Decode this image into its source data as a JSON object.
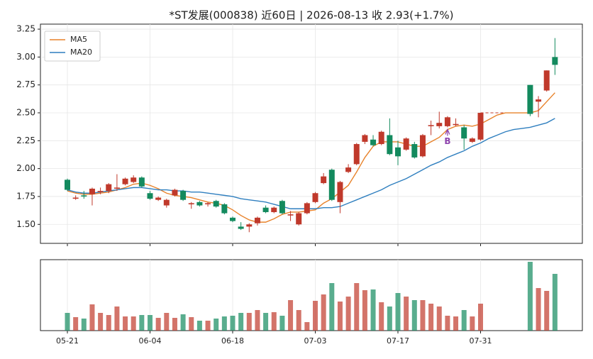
{
  "chart_data": {
    "type": "candlestick",
    "title": "*ST发展(000838) 近60日  |  2026-08-13 收 2.93(+1.7%)",
    "categories": [
      "05-21",
      null,
      null,
      null,
      null,
      null,
      null,
      null,
      null,
      null,
      "06-04",
      null,
      null,
      null,
      null,
      null,
      null,
      null,
      null,
      null,
      "06-18",
      null,
      null,
      null,
      null,
      null,
      null,
      null,
      null,
      null,
      "07-03",
      null,
      null,
      null,
      null,
      null,
      null,
      null,
      null,
      null,
      "07-17",
      null,
      null,
      null,
      null,
      null,
      null,
      null,
      null,
      null,
      "07-31",
      null,
      null,
      null,
      null,
      null,
      null,
      null,
      null,
      null
    ],
    "open": [
      1.9,
      1.73,
      1.76,
      1.77,
      1.79,
      1.8,
      1.82,
      1.86,
      1.88,
      1.92,
      1.78,
      1.72,
      1.67,
      1.76,
      1.8,
      1.68,
      1.7,
      1.68,
      1.71,
      1.68,
      1.56,
      1.48,
      1.48,
      1.51,
      1.65,
      1.61,
      1.71,
      1.58,
      1.5,
      1.6,
      1.7,
      1.87,
      1.99,
      1.7,
      1.97,
      2.04,
      2.24,
      2.26,
      2.22,
      2.3,
      2.19,
      2.17,
      2.22,
      2.11,
      2.38,
      2.38,
      2.38,
      2.39,
      2.37,
      2.24,
      2.26,
      null,
      null,
      null,
      null,
      null,
      2.75,
      2.6,
      2.7,
      3.0
    ],
    "high": [
      1.91,
      1.76,
      1.8,
      1.83,
      1.83,
      1.87,
      1.95,
      1.92,
      1.94,
      1.93,
      1.8,
      1.75,
      1.73,
      1.82,
      1.81,
      1.7,
      1.71,
      1.7,
      1.72,
      1.69,
      1.57,
      1.52,
      1.51,
      1.57,
      1.67,
      1.66,
      1.72,
      1.62,
      1.61,
      1.7,
      1.79,
      1.96,
      2.0,
      1.89,
      2.04,
      2.23,
      2.31,
      2.3,
      2.34,
      2.45,
      2.25,
      2.28,
      2.24,
      2.31,
      2.43,
      2.51,
      2.47,
      2.45,
      2.39,
      2.28,
      2.5,
      null,
      null,
      null,
      null,
      null,
      2.75,
      2.65,
      2.88,
      3.17
    ],
    "low": [
      1.8,
      1.72,
      1.73,
      1.67,
      1.77,
      1.78,
      1.8,
      1.85,
      1.87,
      1.83,
      1.72,
      1.71,
      1.65,
      1.75,
      1.71,
      1.64,
      1.66,
      1.66,
      1.65,
      1.59,
      1.52,
      1.45,
      1.43,
      1.49,
      1.6,
      1.6,
      1.59,
      1.53,
      1.49,
      1.59,
      1.69,
      1.86,
      1.71,
      1.6,
      1.96,
      2.03,
      2.22,
      2.2,
      2.21,
      2.12,
      2.03,
      2.16,
      2.09,
      2.1,
      2.3,
      2.36,
      2.37,
      2.38,
      2.17,
      2.23,
      2.25,
      null,
      null,
      null,
      null,
      null,
      2.47,
      2.46,
      2.69,
      2.84
    ],
    "close": [
      1.81,
      1.74,
      1.75,
      1.82,
      1.8,
      1.86,
      1.83,
      1.91,
      1.92,
      1.84,
      1.73,
      1.74,
      1.72,
      1.81,
      1.72,
      1.69,
      1.67,
      1.69,
      1.66,
      1.6,
      1.53,
      1.46,
      1.5,
      1.56,
      1.61,
      1.65,
      1.6,
      1.59,
      1.6,
      1.69,
      1.78,
      1.93,
      1.72,
      1.88,
      2.01,
      2.22,
      2.3,
      2.21,
      2.33,
      2.13,
      2.11,
      2.27,
      2.1,
      2.3,
      2.39,
      2.41,
      2.46,
      2.4,
      2.27,
      2.27,
      2.5,
      null,
      null,
      null,
      null,
      null,
      2.49,
      2.62,
      2.88,
      2.93
    ],
    "volume": [
      25,
      19,
      17,
      37,
      25,
      22,
      34,
      20,
      20,
      22,
      22,
      18,
      25,
      18,
      23,
      19,
      14,
      14,
      17,
      20,
      21,
      25,
      25,
      29,
      25,
      26,
      21,
      43,
      29,
      12,
      42,
      51,
      67,
      41,
      48,
      67,
      57,
      58,
      40,
      34,
      53,
      48,
      43,
      43,
      38,
      34,
      21,
      20,
      29,
      20,
      38,
      null,
      null,
      null,
      null,
      null,
      97,
      60,
      56,
      80
    ],
    "up_color": "#c0392b",
    "down_color": "#138a5e",
    "series": [
      {
        "name": "MA5",
        "color": "#e8822a",
        "values": [
          1.8,
          1.78,
          1.77,
          1.77,
          1.78,
          1.79,
          1.81,
          1.83,
          1.86,
          1.87,
          1.85,
          1.82,
          1.78,
          1.76,
          1.75,
          1.74,
          1.72,
          1.7,
          1.69,
          1.67,
          1.63,
          1.58,
          1.54,
          1.52,
          1.52,
          1.55,
          1.59,
          1.61,
          1.61,
          1.62,
          1.63,
          1.69,
          1.73,
          1.79,
          1.85,
          1.97,
          2.1,
          2.2,
          2.24,
          2.24,
          2.24,
          2.22,
          2.2,
          2.2,
          2.24,
          2.28,
          2.35,
          2.38,
          2.39,
          2.38,
          2.4,
          2.44,
          2.48,
          2.5,
          2.5,
          2.5,
          2.5,
          2.52,
          2.6,
          2.68
        ]
      },
      {
        "name": "MA20",
        "color": "#2f7fbf",
        "values": [
          1.81,
          1.79,
          1.78,
          1.78,
          1.79,
          1.8,
          1.81,
          1.82,
          1.83,
          1.83,
          1.82,
          1.81,
          1.81,
          1.8,
          1.8,
          1.79,
          1.79,
          1.78,
          1.77,
          1.76,
          1.75,
          1.73,
          1.72,
          1.71,
          1.7,
          1.68,
          1.66,
          1.64,
          1.64,
          1.64,
          1.64,
          1.65,
          1.65,
          1.66,
          1.69,
          1.72,
          1.75,
          1.78,
          1.81,
          1.85,
          1.88,
          1.91,
          1.95,
          1.99,
          2.03,
          2.06,
          2.1,
          2.13,
          2.16,
          2.2,
          2.23,
          2.27,
          2.3,
          2.33,
          2.35,
          2.36,
          2.37,
          2.39,
          2.41,
          2.45
        ]
      }
    ],
    "ylim": [
      1.33,
      3.295
    ],
    "yticks": [
      {
        "value": 1.5,
        "label": "1.50"
      },
      1.75,
      {
        "value": 2,
        "label": "2.00"
      },
      2.25,
      {
        "value": 2.5,
        "label": "2.50"
      },
      2.75,
      {
        "value": 3,
        "label": "3.00"
      },
      3.25
    ],
    "grid": true,
    "legend": "upper left",
    "annotations": [
      {
        "text": "B",
        "index": 46,
        "color": "#8e44ad"
      }
    ]
  }
}
